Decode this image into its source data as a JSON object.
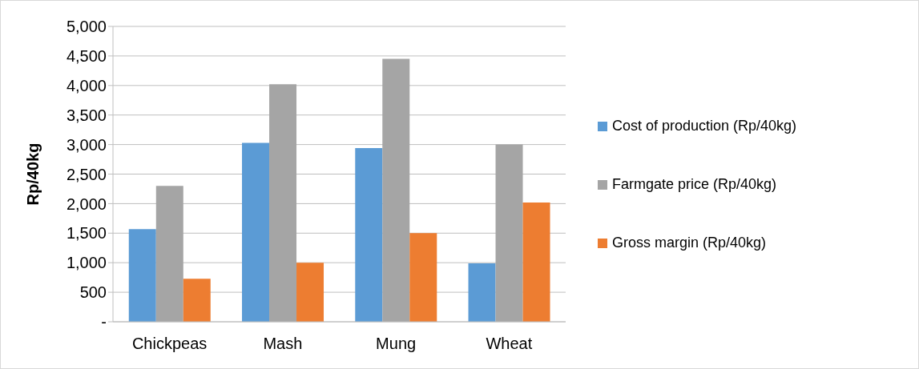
{
  "chart_data": {
    "type": "bar",
    "ylabel": "Rp/40kg",
    "categories": [
      "Chickpeas",
      "Mash",
      "Mung",
      "Wheat"
    ],
    "series": [
      {
        "name": "Cost of production (Rp/40kg)",
        "color": "#5b9bd5",
        "values": [
          1570,
          3030,
          2940,
          990
        ]
      },
      {
        "name": "Farmgate price (Rp/40kg)",
        "color": "#a5a5a5",
        "values": [
          2300,
          4020,
          4450,
          3000
        ]
      },
      {
        "name": "Gross margin (Rp/40kg)",
        "color": "#ed7d31",
        "values": [
          730,
          1000,
          1500,
          2020
        ]
      }
    ],
    "ylim": [
      0,
      5000
    ],
    "yticks": [
      {
        "value": 0,
        "label": "-"
      },
      {
        "value": 500,
        "label": "500"
      },
      {
        "value": 1000,
        "label": "1,000"
      },
      {
        "value": 1500,
        "label": "1,500"
      },
      {
        "value": 2000,
        "label": "2,000"
      },
      {
        "value": 2500,
        "label": "2,500"
      },
      {
        "value": 3000,
        "label": "3,000"
      },
      {
        "value": 3500,
        "label": "3,500"
      },
      {
        "value": 4000,
        "label": "4,000"
      },
      {
        "value": 4500,
        "label": "4,500"
      },
      {
        "value": 5000,
        "label": "5,000"
      }
    ],
    "grid": "y",
    "legend": "right"
  }
}
